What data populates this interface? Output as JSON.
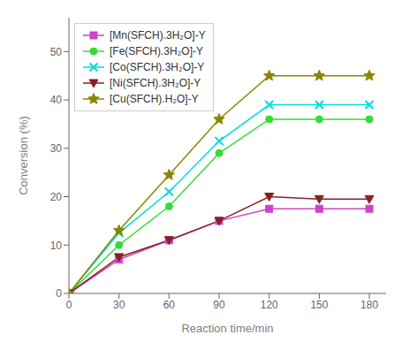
{
  "chart_data": {
    "type": "line",
    "x": [
      0,
      30,
      60,
      90,
      120,
      150,
      180
    ],
    "series": [
      {
        "name": "[Mn(SFCH).3H₂O]-Y",
        "color": "#CC44CC",
        "marker": "square",
        "values": [
          0,
          7,
          11,
          15,
          17.5,
          17.5,
          17.5
        ]
      },
      {
        "name": "[Fe(SFCH).3H₂O]-Y",
        "color": "#33DD33",
        "marker": "circle",
        "values": [
          0,
          10,
          18,
          29,
          36,
          36,
          36
        ]
      },
      {
        "name": "[Co(SFCH).3H₂O]-Y",
        "color": "#00DDDD",
        "marker": "x",
        "values": [
          0,
          12.5,
          21,
          31.5,
          39,
          39,
          39
        ]
      },
      {
        "name": "[Ni(SFCH).3H₂O]-Y",
        "color": "#882222",
        "marker": "triangle_down",
        "values": [
          0,
          7.5,
          11,
          15,
          20,
          19.5,
          19.5
        ]
      },
      {
        "name": "[Cu(SFCH).H₂O]-Y",
        "color": "#888800",
        "marker": "star",
        "values": [
          0,
          13,
          24.5,
          36,
          45,
          45,
          45
        ]
      }
    ],
    "xlabel": "Reaction time/min",
    "ylabel": "Conversion (%)",
    "xlim": [
      0,
      190
    ],
    "ylim": [
      0,
      57
    ],
    "xticks": [
      0,
      30,
      60,
      90,
      120,
      150,
      180
    ],
    "yticks": [
      0,
      10,
      20,
      30,
      40,
      50
    ],
    "legend": "upper left",
    "grid": false
  }
}
